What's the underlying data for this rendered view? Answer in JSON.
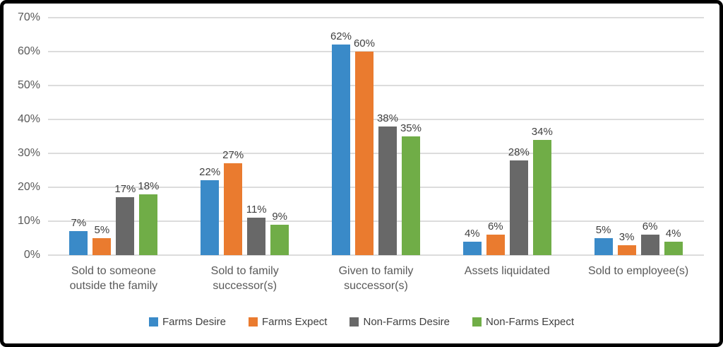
{
  "chart_data": {
    "type": "bar",
    "title": "",
    "xlabel": "",
    "ylabel": "",
    "categories": [
      "Sold to someone outside the family",
      "Sold to family successor(s)",
      "Given to family successor(s)",
      "Assets liquidated",
      "Sold to employee(s)"
    ],
    "series": [
      {
        "name": "Farms Desire",
        "color": "#3a8ac8",
        "values": [
          7,
          22,
          62,
          4,
          5
        ]
      },
      {
        "name": "Farms Expect",
        "color": "#ea7b2f",
        "values": [
          5,
          27,
          60,
          6,
          3
        ]
      },
      {
        "name": "Non-Farms Desire",
        "color": "#686868",
        "values": [
          17,
          11,
          38,
          28,
          6
        ]
      },
      {
        "name": "Non-Farms Expect",
        "color": "#70ad47",
        "values": [
          18,
          9,
          35,
          34,
          4
        ]
      }
    ],
    "ylim": [
      0,
      70
    ],
    "ytick_step": 10,
    "yticks": [
      "0%",
      "10%",
      "20%",
      "30%",
      "40%",
      "50%",
      "60%",
      "70%"
    ],
    "value_suffix": "%",
    "grid": true,
    "legend_position": "bottom"
  }
}
